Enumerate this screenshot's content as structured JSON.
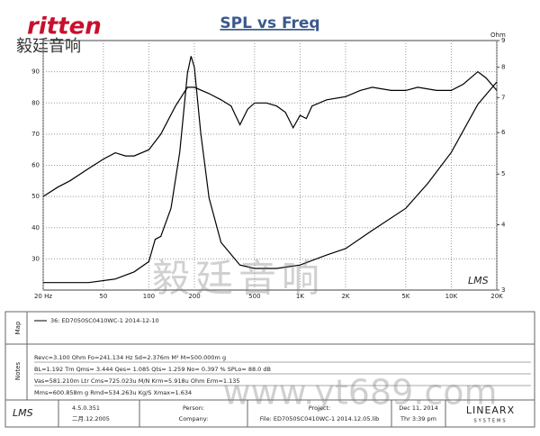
{
  "logo": {
    "brand": "ritten",
    "chinese": "毅廷音响"
  },
  "chart_data": {
    "type": "line",
    "title": "SPL vs Freq",
    "y2label": "Ohm",
    "watermark": "LMS",
    "xscale": "log",
    "y2scale": "log",
    "grid": true,
    "xlim": [
      20,
      20000
    ],
    "ylim": [
      20,
      100
    ],
    "y2lim": [
      3,
      9
    ],
    "xticks": [
      {
        "value": 20,
        "label": "20 Hz"
      },
      50,
      100,
      200,
      500,
      {
        "value": 1000,
        "label": "1K"
      },
      {
        "value": 2000,
        "label": "2K"
      },
      {
        "value": 5000,
        "label": "5K"
      },
      {
        "value": 10000,
        "label": "10K"
      },
      {
        "value": 20000,
        "label": "20K"
      }
    ],
    "yticks": [
      30,
      40,
      50,
      60,
      70,
      80,
      90
    ],
    "y2ticks": [
      3,
      4,
      5,
      6,
      7,
      8,
      9
    ],
    "series": [
      {
        "color": "#000000",
        "x": [
          20,
          25,
          30,
          40,
          50,
          60,
          70,
          80,
          100,
          120,
          150,
          180,
          200,
          250,
          300,
          350,
          400,
          450,
          500,
          600,
          700,
          800,
          900,
          1000,
          1100,
          1200,
          1500,
          2000,
          2500,
          3000,
          4000,
          5000,
          6000,
          8000,
          10000,
          12000,
          15000,
          17000,
          20000
        ],
        "values": [
          50,
          53,
          55,
          59,
          62,
          64,
          63,
          63,
          65,
          70,
          79,
          85,
          85,
          83,
          81,
          79,
          73,
          78,
          80,
          80,
          79,
          77,
          72,
          76,
          75,
          79,
          81,
          82,
          84,
          85,
          84,
          84,
          85,
          84,
          84,
          86,
          90,
          88,
          84
        ]
      },
      {
        "color": "#000000",
        "axis": "y2",
        "x": [
          20,
          40,
          60,
          80,
          100,
          110,
          120,
          140,
          160,
          180,
          190,
          200,
          220,
          250,
          300,
          400,
          500,
          700,
          1000,
          1500,
          2000,
          3000,
          5000,
          7000,
          10000,
          15000,
          20000
        ],
        "values": [
          3.1,
          3.1,
          3.15,
          3.25,
          3.4,
          3.75,
          3.8,
          4.3,
          5.5,
          7.8,
          8.4,
          8.0,
          6.0,
          4.5,
          3.7,
          3.35,
          3.3,
          3.3,
          3.35,
          3.5,
          3.6,
          3.9,
          4.3,
          4.8,
          5.5,
          6.8,
          7.5
        ]
      }
    ]
  },
  "panels": {
    "map": "Map",
    "notes": "Notes"
  },
  "legend": "36: ED7050SC0410WC-1   2014-12-10",
  "notes": [
    "Revc=3.100 Ohm  Fo=241.134 Hz  Sd=2.376m M²  M=500.000m g",
    "BL=1.192 Tm  Qms= 3.444  Qes= 1.085  Qts= 1.259  No= 0.397 %  SPLo= 88.0 dB",
    "Vas=581.210m Ltr  Cms=725.023u M/N  Krm=5.918u Ohm  Erm=1.135",
    "Mms=600.858m g  Rmd=534.263u Kg/S  Xmax=1.634"
  ],
  "footer": {
    "lms": "LMS",
    "version": "4.5.0.351",
    "date": "二月.12.2005",
    "person": "Person:",
    "company": "Company:",
    "project": "Project:",
    "file": "File: ED7050SC0410WC-1   2014.12.05.lib",
    "day": "Dec 11, 2014",
    "time": "Thr  3:39 pm",
    "brand": "LINEARX",
    "brand_sub": "SYSTEMS"
  },
  "watermark": {
    "chinese": "毅廷音响",
    "url": "www.yt689.com"
  }
}
